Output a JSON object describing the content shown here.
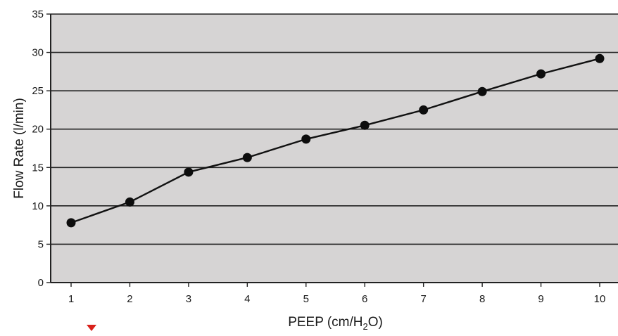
{
  "chart_data": {
    "type": "line",
    "title": "",
    "xlabel": "PEEP (cm/H",
    "xlabel_subscript": "2",
    "xlabel_suffix": "O)",
    "ylabel": "Flow Rate (l/min)",
    "x": [
      1,
      2,
      3,
      4,
      5,
      6,
      7,
      8,
      9,
      10
    ],
    "series": [
      {
        "values": [
          7.8,
          10.5,
          14.4,
          16.3,
          18.7,
          20.5,
          22.5,
          24.9,
          27.2,
          29.2
        ]
      }
    ],
    "xlim": [
      1,
      10
    ],
    "ylim": [
      0,
      35
    ],
    "yticks": [
      0,
      5,
      10,
      15,
      20,
      25,
      30,
      35
    ],
    "xticks": [
      1,
      2,
      3,
      4,
      5,
      6,
      7,
      8,
      9,
      10
    ],
    "grid": "horizontal",
    "legend": "none"
  },
  "colors": {
    "plot_background": "#d6d4d4",
    "gridline": "#222222",
    "series_line": "#111111",
    "marker": "#0d0d0d",
    "triangle_marker": "#d9211b"
  },
  "icons": {
    "bottom_marker": "red-down-triangle-icon"
  }
}
